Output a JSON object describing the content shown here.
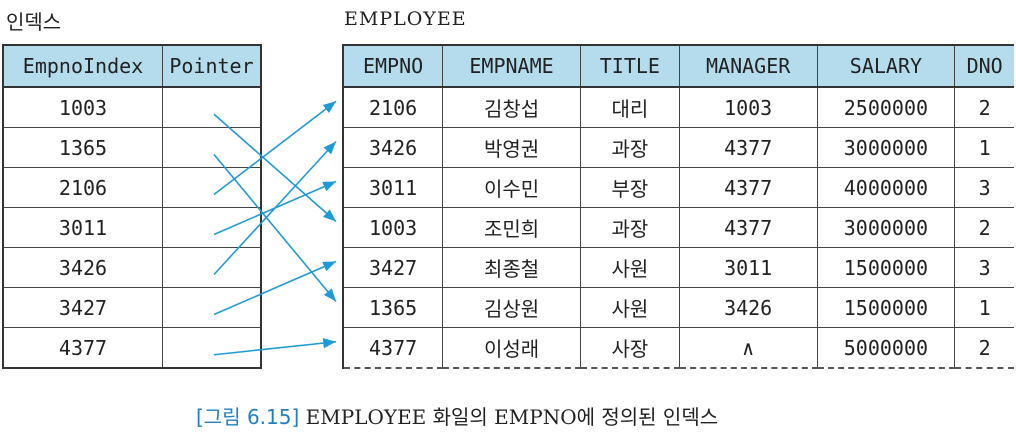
{
  "index": {
    "title": "인덱스",
    "headers": [
      "EmpnoIndex",
      "Pointer"
    ],
    "rows": [
      "1003",
      "1365",
      "2106",
      "3011",
      "3426",
      "3427",
      "4377"
    ]
  },
  "employee": {
    "title": "EMPLOYEE",
    "headers": [
      "EMPNO",
      "EMPNAME",
      "TITLE",
      "MANAGER",
      "SALARY",
      "DNO"
    ],
    "rows": [
      [
        "2106",
        "김창섭",
        "대리",
        "1003",
        "2500000",
        "2"
      ],
      [
        "3426",
        "박영권",
        "과장",
        "4377",
        "3000000",
        "1"
      ],
      [
        "3011",
        "이수민",
        "부장",
        "4377",
        "4000000",
        "3"
      ],
      [
        "1003",
        "조민희",
        "과장",
        "4377",
        "3000000",
        "2"
      ],
      [
        "3427",
        "최종철",
        "사원",
        "3011",
        "1500000",
        "3"
      ],
      [
        "1365",
        "김상원",
        "사원",
        "3426",
        "1500000",
        "1"
      ],
      [
        "4377",
        "이성래",
        "사장",
        "∧",
        "5000000",
        "2"
      ]
    ]
  },
  "caption": {
    "figure": "[그림 6.15]",
    "text": "EMPLOYEE 화일의 EMPNO에 정의된 인덱스"
  },
  "colors": {
    "header_fill": "#b4dced",
    "arrow": "#1e9ad6",
    "caption_figure": "#1f7fc4"
  }
}
